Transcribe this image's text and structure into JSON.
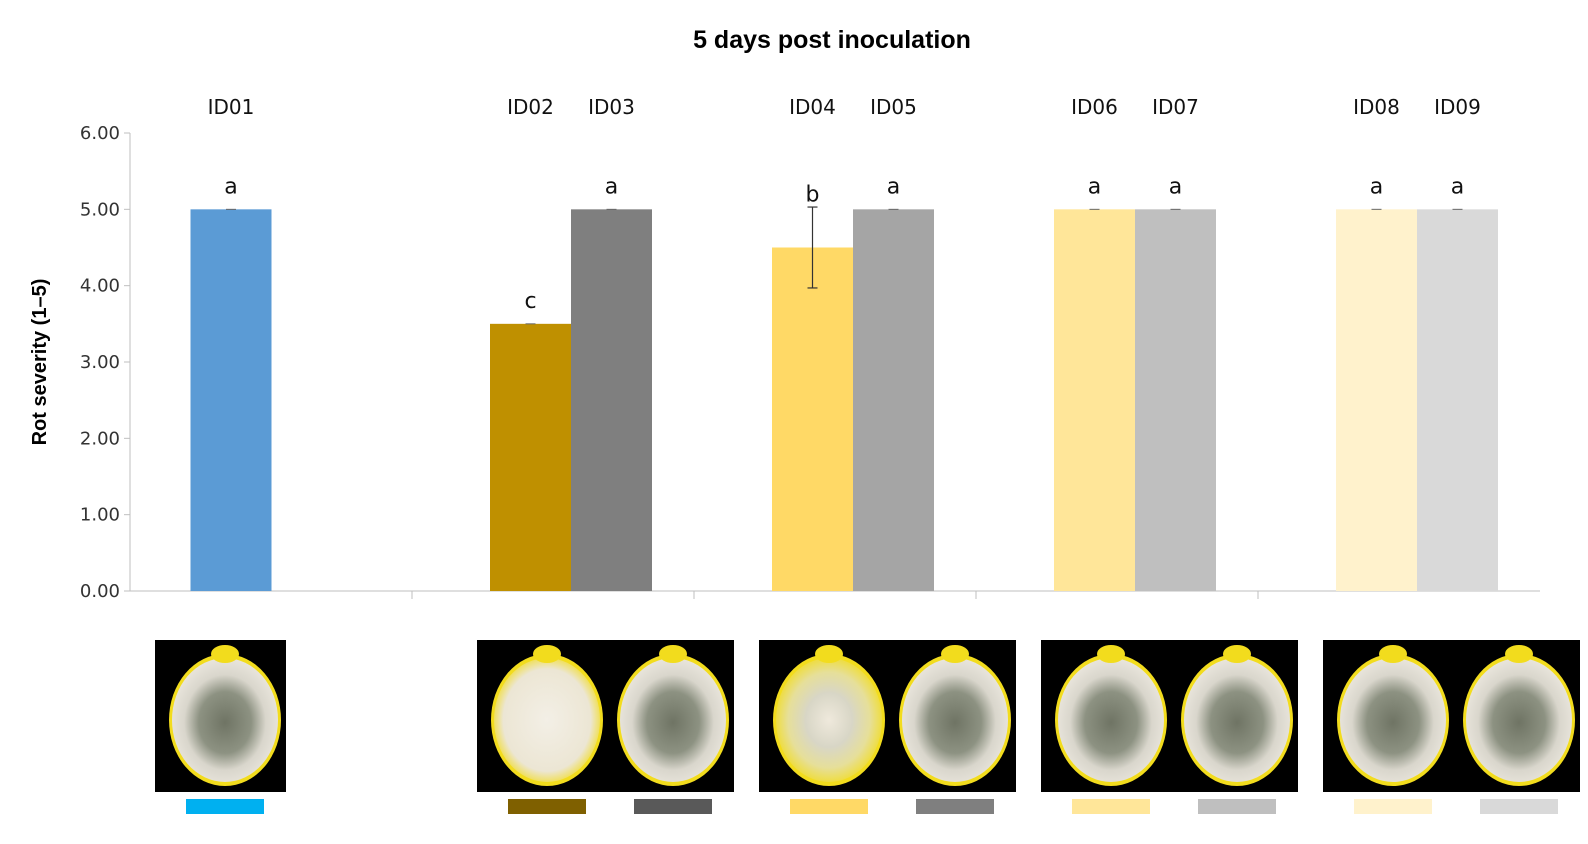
{
  "chart_data": {
    "type": "bar",
    "title": "5 days post inoculation",
    "ylabel": "Rot severity (1–5)",
    "xlabel": "",
    "ylim": [
      0,
      6
    ],
    "yticks": [
      "0.00",
      "1.00",
      "2.00",
      "3.00",
      "4.00",
      "5.00",
      "6.00"
    ],
    "grid": false,
    "groups": [
      {
        "bars": [
          {
            "id": "ID01",
            "value": 5.0,
            "error": 0,
            "letter": "a",
            "color": "#5b9bd5",
            "swatch": "#00b0f0"
          }
        ]
      },
      {
        "bars": [
          {
            "id": "ID02",
            "value": 3.5,
            "error": 0,
            "letter": "c",
            "color": "#bf9000",
            "swatch": "#7f6000"
          },
          {
            "id": "ID03",
            "value": 5.0,
            "error": 0,
            "letter": "a",
            "color": "#7f7f7f",
            "swatch": "#595959"
          }
        ]
      },
      {
        "bars": [
          {
            "id": "ID04",
            "value": 4.5,
            "error": 0.53,
            "letter": "b",
            "color": "#ffd966",
            "swatch": "#ffd966"
          },
          {
            "id": "ID05",
            "value": 5.0,
            "error": 0,
            "letter": "a",
            "color": "#a5a5a5",
            "swatch": "#7f7f7f"
          }
        ]
      },
      {
        "bars": [
          {
            "id": "ID06",
            "value": 5.0,
            "error": 0,
            "letter": "a",
            "color": "#ffe699",
            "swatch": "#ffe699"
          },
          {
            "id": "ID07",
            "value": 5.0,
            "error": 0,
            "letter": "a",
            "color": "#bfbfbf",
            "swatch": "#bfbfbf"
          }
        ]
      },
      {
        "bars": [
          {
            "id": "ID08",
            "value": 5.0,
            "error": 0,
            "letter": "a",
            "color": "#fff2cc",
            "swatch": "#fff2cc"
          },
          {
            "id": "ID09",
            "value": 5.0,
            "error": 0,
            "letter": "a",
            "color": "#d9d9d9",
            "swatch": "#d9d9d9"
          }
        ]
      }
    ]
  },
  "photos": {
    "description_icon": "lemon-photo",
    "background": "#000000",
    "lemon_yellow": "#f2dc1d",
    "mold_white": "#ece8df",
    "mold_green": "#6f7464"
  }
}
